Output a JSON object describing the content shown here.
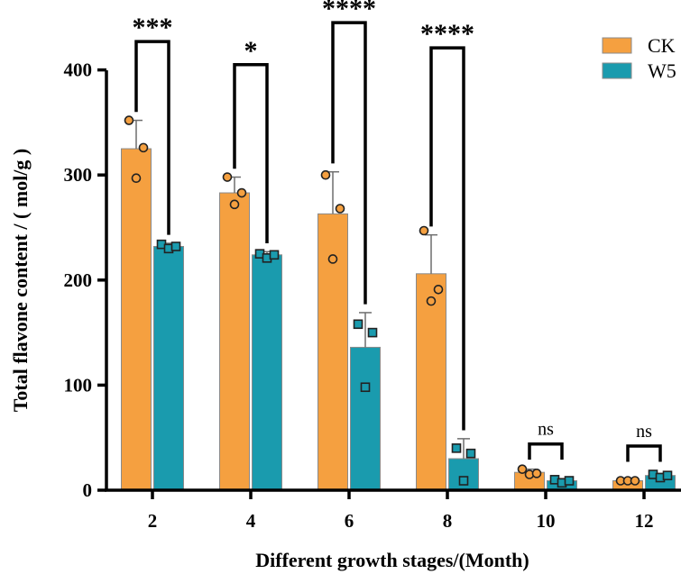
{
  "chart_data": {
    "type": "bar",
    "xlabel": "Different growth stages/(Month)",
    "ylabel": "Total flavone content / ( mol/g )",
    "categories": [
      "2",
      "4",
      "6",
      "8",
      "10",
      "12"
    ],
    "ylim": [
      0,
      400
    ],
    "yticks": [
      0,
      100,
      200,
      300,
      400
    ],
    "grid": false,
    "legend_position": "top-right",
    "series": [
      {
        "name": "CK",
        "color": "#F5A040",
        "marker": "circle",
        "values": [
          325,
          283,
          263,
          206,
          17,
          9
        ],
        "error": [
          27,
          15,
          40,
          37,
          3,
          1
        ],
        "points": [
          [
            352,
            297,
            326
          ],
          [
            298,
            272,
            283
          ],
          [
            300,
            220,
            268
          ],
          [
            247,
            180,
            191
          ],
          [
            20,
            15,
            16
          ],
          [
            9,
            9,
            9
          ]
        ]
      },
      {
        "name": "W5",
        "color": "#1A9BAE",
        "marker": "square",
        "values": [
          232,
          224,
          136,
          30,
          9,
          14
        ],
        "error": [
          3,
          3,
          33,
          19,
          2,
          2
        ],
        "points": [
          [
            234,
            230,
            232
          ],
          [
            225,
            221,
            224
          ],
          [
            158,
            98,
            150
          ],
          [
            40,
            9,
            35
          ],
          [
            10,
            7,
            9
          ],
          [
            15,
            12,
            14
          ]
        ]
      }
    ],
    "significance": [
      {
        "category": "2",
        "label": "***",
        "y": 427
      },
      {
        "category": "4",
        "label": "*",
        "y": 405
      },
      {
        "category": "6",
        "label": "****",
        "y": 445
      },
      {
        "category": "8",
        "label": "****",
        "y": 421
      },
      {
        "category": "10",
        "label": "ns",
        "y": 44
      },
      {
        "category": "12",
        "label": "ns",
        "y": 42
      }
    ]
  }
}
